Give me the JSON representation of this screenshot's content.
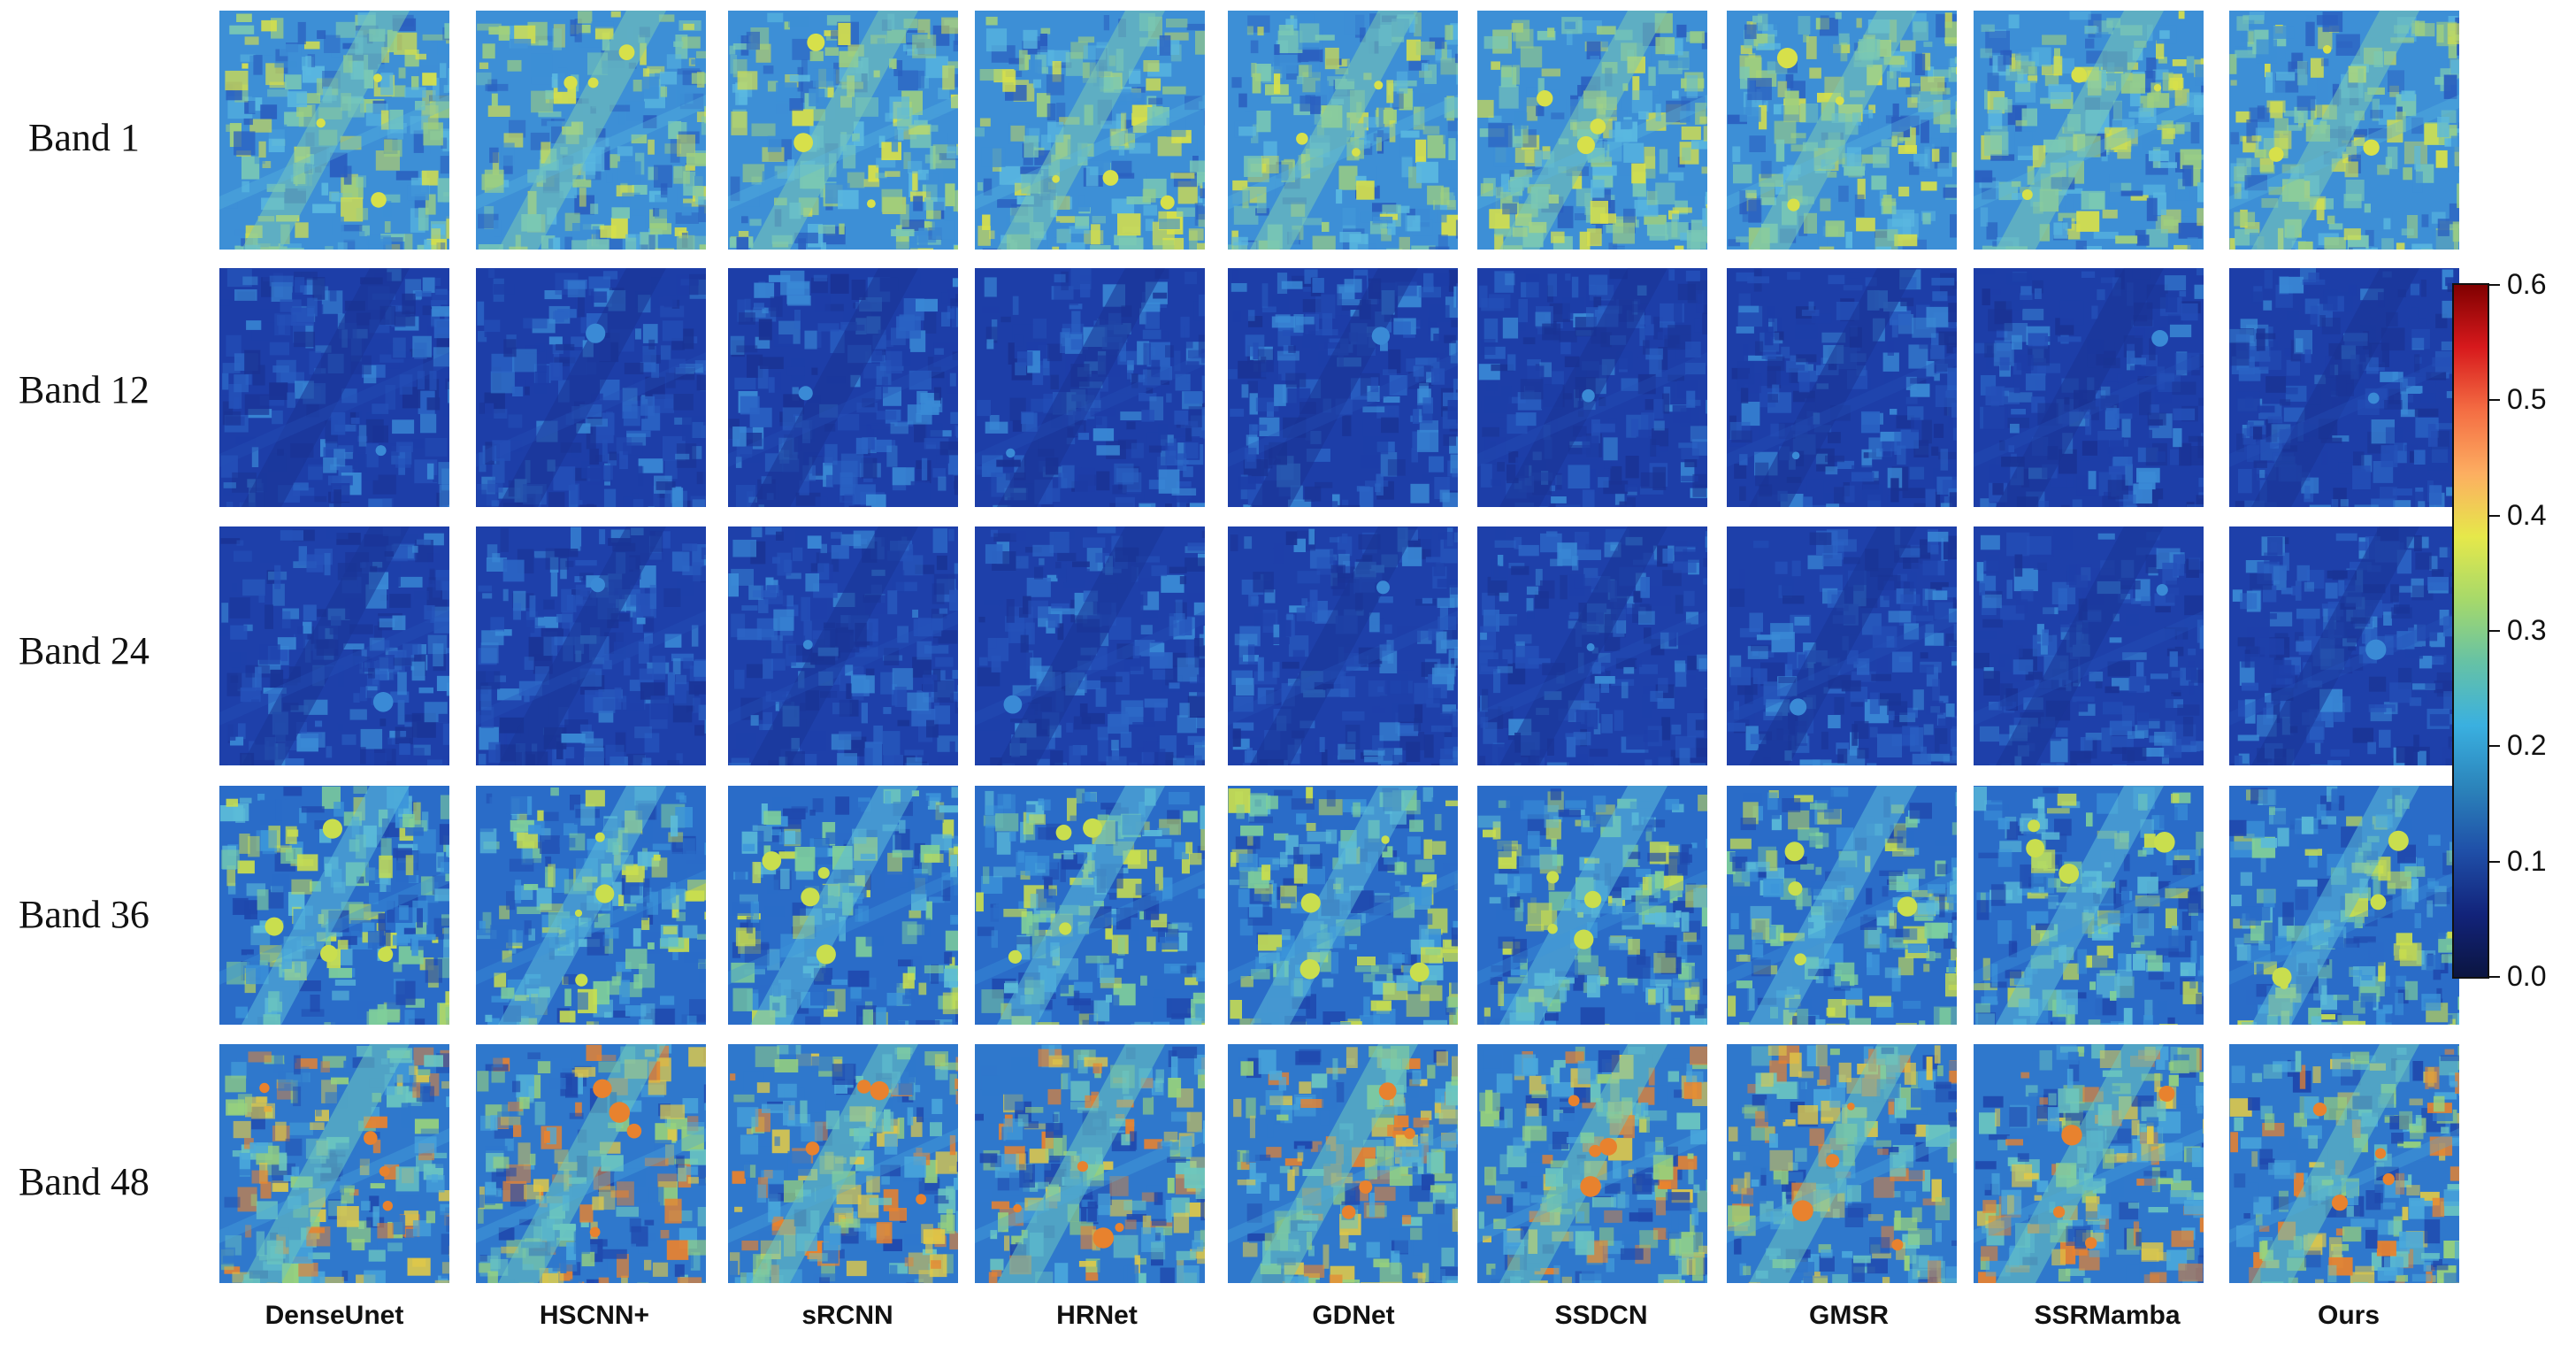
{
  "rows": [
    "Band 1",
    "Band 12",
    "Band 24",
    "Band 36",
    "Band 48"
  ],
  "columns": [
    "DenseUnet",
    "HSCNN+",
    "sRCNN",
    "HRNet",
    "GDNet",
    "SSDCN",
    "GMSR",
    "SSRMamba",
    "Ours"
  ],
  "colorbar": {
    "ticks": [
      "0.6",
      "0.5",
      "0.4",
      "0.3",
      "0.2",
      "0.1",
      "0.0"
    ],
    "colors": [
      "#7f0000",
      "#d7191c",
      "#f46d43",
      "#fdae61",
      "#e6e84a",
      "#a6d96a",
      "#66c2a5",
      "#3ab0e0",
      "#2b83ba",
      "#1f4fa8",
      "#12237a",
      "#0b1540"
    ]
  },
  "tile_palette": {
    "band1": [
      "#3d8fd6",
      "#5ab8e0",
      "#7ac8b4",
      "#9fd07e",
      "#2a5fbf",
      "#d7e04a"
    ],
    "band12": [
      "#1d3ea8",
      "#2450b8",
      "#1a3394",
      "#2a63c4",
      "#3a8ad6"
    ],
    "band24": [
      "#1e40aa",
      "#2552ba",
      "#1a3496",
      "#2c66c6",
      "#3a8ad6"
    ],
    "band36": [
      "#2a6cc8",
      "#3c95da",
      "#5bbbd8",
      "#7fcf9a",
      "#1f48ad",
      "#c9de4e"
    ],
    "band48": [
      "#2f78cc",
      "#4aa8dc",
      "#6cc7c0",
      "#98d27c",
      "#1f48ad",
      "#e0c948",
      "#e8822e"
    ]
  }
}
